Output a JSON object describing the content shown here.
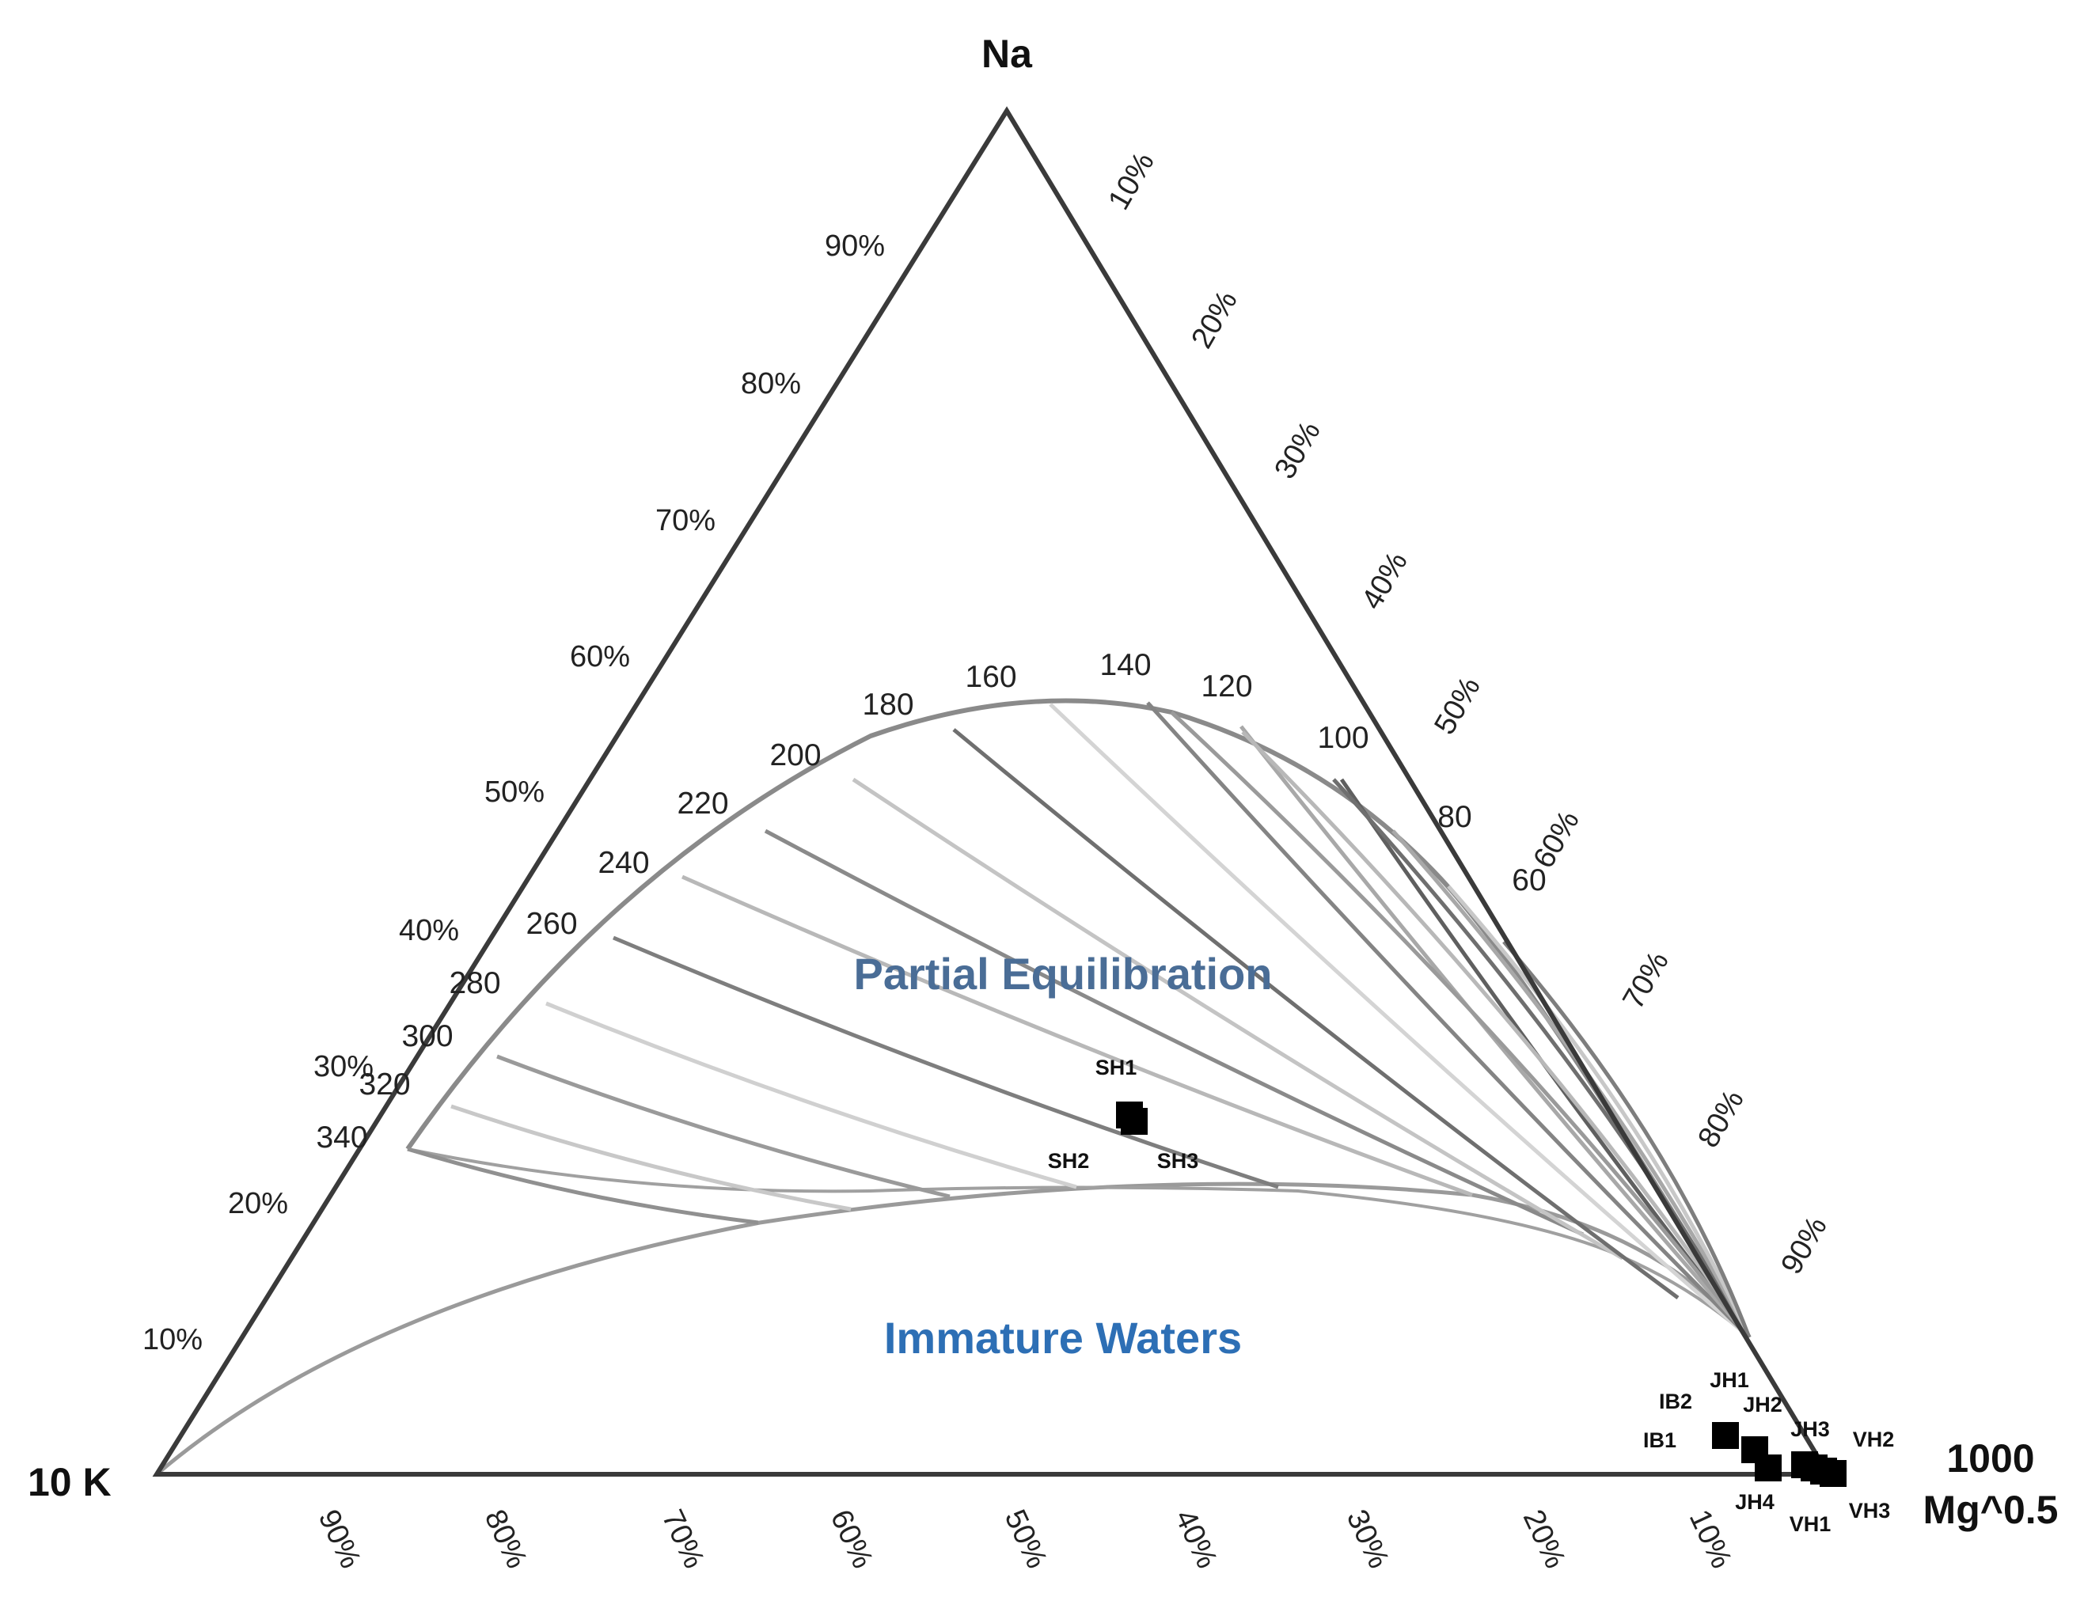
{
  "vertices": {
    "top": "Na",
    "left": "10 K",
    "right_line1": "1000",
    "right_line2": "Mg^0.5"
  },
  "left_side_ticks": [
    "90%",
    "80%",
    "70%",
    "60%",
    "50%",
    "40%",
    "30%",
    "20%",
    "10%"
  ],
  "right_side_ticks": [
    "10%",
    "20%",
    "30%",
    "40%",
    "50%",
    "60%",
    "70%",
    "80%",
    "90%"
  ],
  "bottom_ticks": [
    "90%",
    "80%",
    "70%",
    "60%",
    "50%",
    "40%",
    "30%",
    "20%",
    "10%"
  ],
  "isotherm_labels": [
    "340",
    "320",
    "300",
    "280",
    "260",
    "240",
    "220",
    "200",
    "180",
    "160",
    "140",
    "120",
    "100",
    "80",
    "60"
  ],
  "regions": {
    "partial": "Partial Equilibration",
    "immature": "Immature Waters"
  },
  "colors": {
    "partial": "#4a6d96",
    "immature": "#2d6fb5",
    "triangle": "#3a3a3a",
    "curves": "#8c8c8c"
  },
  "samples": [
    "SH1",
    "SH2",
    "SH3",
    "IB1",
    "IB2",
    "JH1",
    "JH2",
    "JH3",
    "JH4",
    "VH1",
    "VH2",
    "VH3"
  ],
  "sample_marker_count": 9
}
